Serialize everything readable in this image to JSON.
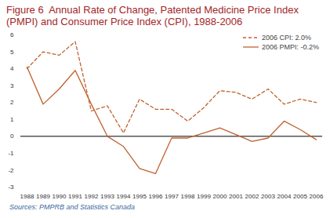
{
  "chart_data": {
    "type": "line",
    "title": "Figure 6  Annual Rate of Change, Patented Medicine Price Index (PMPI) and Consumer Price Index (CPI), 1988-2006",
    "caption": "Sources: PMPRB and Statistics Canada",
    "x": [
      1988,
      1989,
      1990,
      1991,
      1992,
      1993,
      1994,
      1995,
      1996,
      1997,
      1998,
      1999,
      2000,
      2001,
      2002,
      2003,
      2004,
      2005,
      2006
    ],
    "series": [
      {
        "name": "2006 CPI: 2.0%",
        "color": "#c0622e",
        "line_style": "dashed",
        "values": [
          4.0,
          5.0,
          4.8,
          5.6,
          1.5,
          1.8,
          0.2,
          2.2,
          1.6,
          1.6,
          0.9,
          1.7,
          2.7,
          2.6,
          2.2,
          2.8,
          1.9,
          2.2,
          2.0
        ]
      },
      {
        "name": "2006 PMPI: -0.2%",
        "color": "#c0622e",
        "line_style": "solid",
        "values": [
          4.1,
          1.9,
          2.8,
          3.9,
          1.9,
          0.0,
          -0.6,
          -1.9,
          -2.2,
          -0.1,
          -0.1,
          0.2,
          0.5,
          0.1,
          -0.3,
          -0.1,
          0.9,
          0.4,
          -0.2
        ]
      }
    ],
    "xlim": [
      1988,
      2006
    ],
    "xticks": [
      1988,
      1989,
      1990,
      1991,
      1992,
      1993,
      1994,
      1995,
      1996,
      1997,
      1998,
      1999,
      2000,
      2001,
      2002,
      2003,
      2004,
      2005,
      2006
    ],
    "ylim": [
      -3,
      6
    ],
    "yticks": [
      -3,
      -2,
      -1,
      0,
      1,
      2,
      3,
      4,
      5,
      6
    ],
    "grid": false,
    "legend": "upper right"
  }
}
